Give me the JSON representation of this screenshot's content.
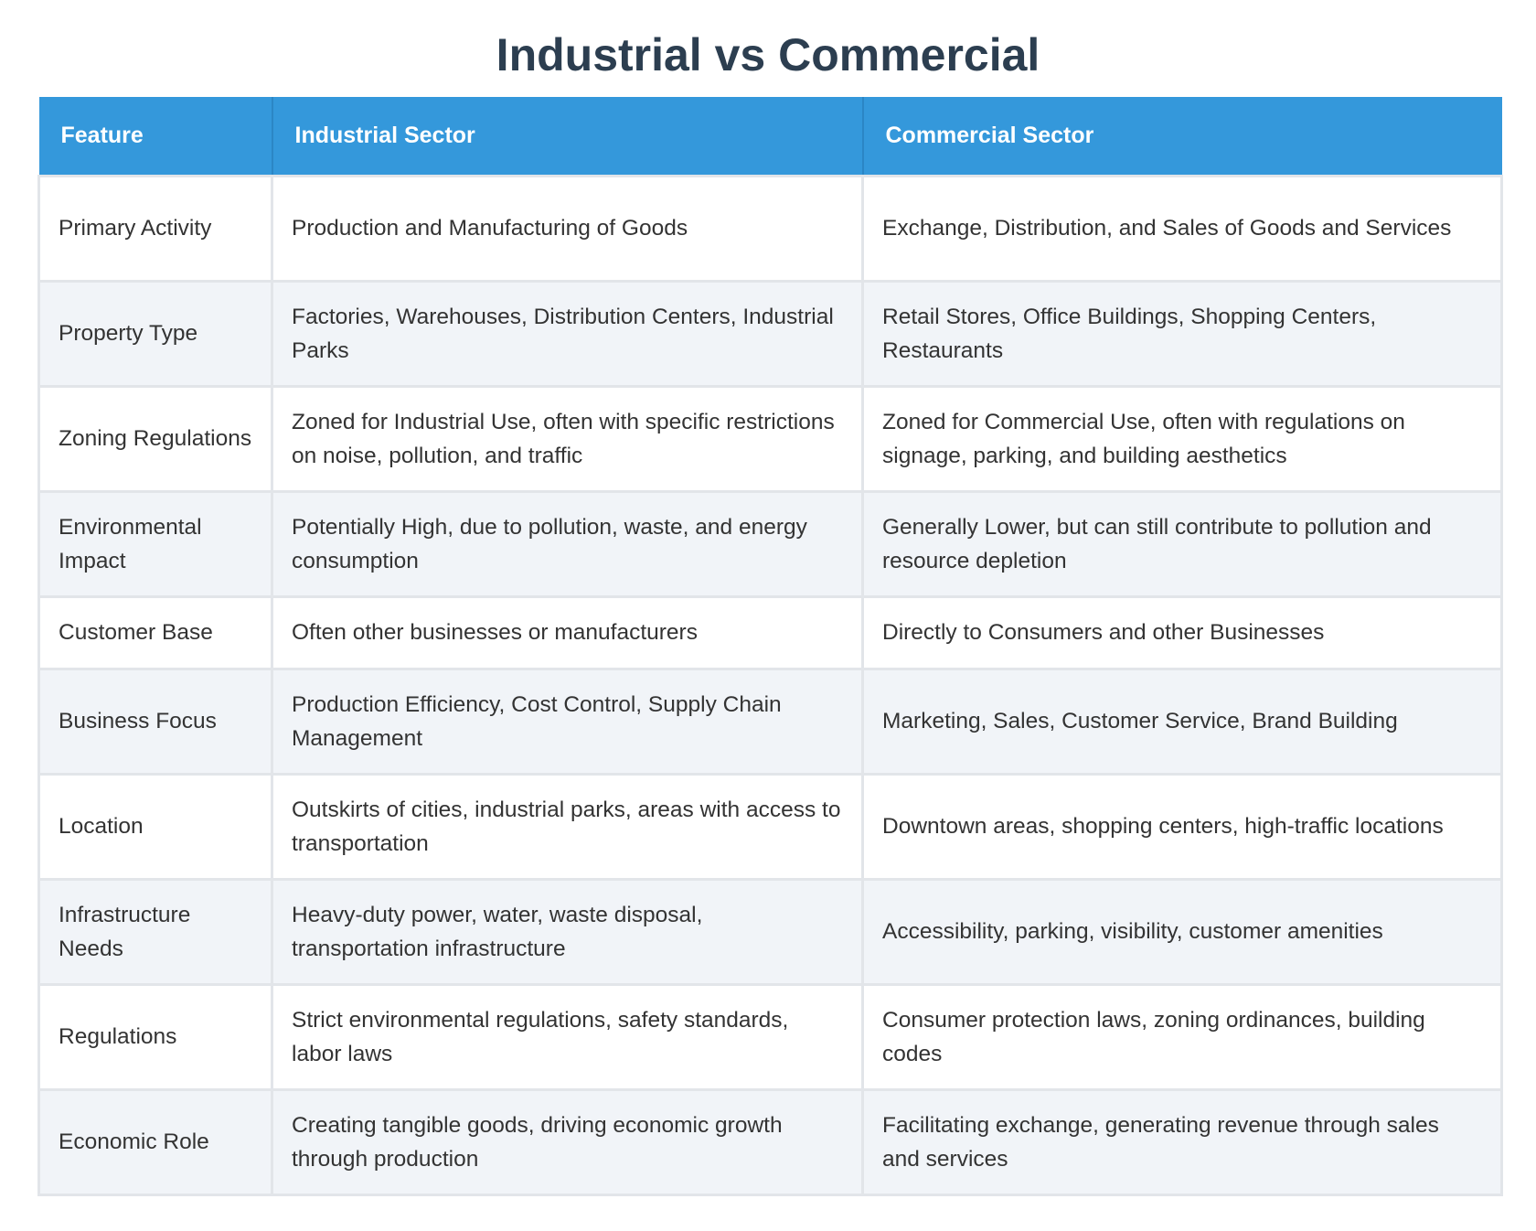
{
  "title": "Industrial vs Commercial",
  "table": {
    "headers": [
      "Feature",
      "Industrial Sector",
      "Commercial Sector"
    ],
    "rows": [
      {
        "feature": "Primary Activity",
        "industrial": "Production and Manufacturing of Goods",
        "commercial": "Exchange, Distribution, and Sales of Goods and Services"
      },
      {
        "feature": "Property Type",
        "industrial": "Factories, Warehouses, Distribution Centers, Industrial Parks",
        "commercial": "Retail Stores, Office Buildings, Shopping Centers, Restaurants"
      },
      {
        "feature": "Zoning Regulations",
        "industrial": "Zoned for Industrial Use, often with specific restrictions on noise, pollution, and traffic",
        "commercial": "Zoned for Commercial Use, often with regulations on signage, parking, and building aesthetics"
      },
      {
        "feature": "Environmental Impact",
        "industrial": "Potentially High, due to pollution, waste, and energy consumption",
        "commercial": "Generally Lower, but can still contribute to pollution and resource depletion"
      },
      {
        "feature": "Customer Base",
        "industrial": "Often other businesses or manufacturers",
        "commercial": "Directly to Consumers and other Businesses"
      },
      {
        "feature": "Business Focus",
        "industrial": "Production Efficiency, Cost Control, Supply Chain Management",
        "commercial": "Marketing, Sales, Customer Service, Brand Building"
      },
      {
        "feature": "Location",
        "industrial": "Outskirts of cities, industrial parks, areas with access to transportation",
        "commercial": "Downtown areas, shopping centers, high-traffic locations"
      },
      {
        "feature": "Infrastructure Needs",
        "industrial": "Heavy-duty power, water, waste disposal, transportation infrastructure",
        "commercial": "Accessibility, parking, visibility, customer amenities"
      },
      {
        "feature": "Regulations",
        "industrial": "Strict environmental regulations, safety standards, labor laws",
        "commercial": "Consumer protection laws, zoning ordinances, building codes"
      },
      {
        "feature": "Economic Role",
        "industrial": "Creating tangible goods, driving economic growth through production",
        "commercial": "Facilitating exchange, generating revenue through sales and services"
      }
    ]
  },
  "colors": {
    "title": "#2c3e50",
    "header_bg": "#3498db",
    "header_text": "#ffffff",
    "row_alt_bg": "#f1f4f8",
    "border": "#e2e5e9"
  }
}
